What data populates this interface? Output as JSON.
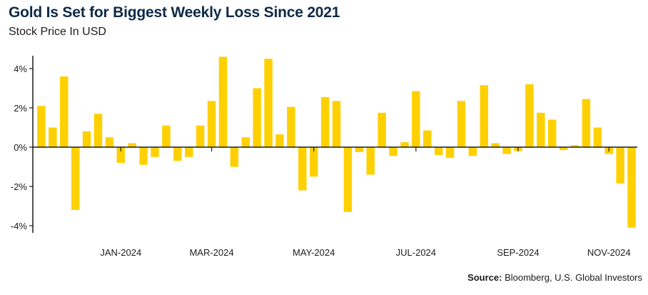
{
  "chart_data": {
    "type": "bar",
    "title": "Gold Is Set for Biggest Weekly Loss Since 2021",
    "subtitle": "Stock Price In USD",
    "xlabel": "",
    "ylabel": "",
    "ylim": [
      -4.5,
      4.8
    ],
    "yticks": [
      4,
      2,
      0,
      -2,
      -4
    ],
    "ytick_labels": [
      "4%",
      "2%",
      "0%",
      "-2%",
      "-4%"
    ],
    "xtick_labels": [
      "JAN-2024",
      "MAR-2024",
      "MAY-2024",
      "JUL-2024",
      "SEP-2024",
      "NOV-2024"
    ],
    "xtick_week_index": [
      7,
      15,
      24,
      33,
      42,
      50
    ],
    "values": [
      2.1,
      1.0,
      3.6,
      -3.2,
      0.8,
      1.7,
      0.5,
      -0.8,
      0.2,
      -0.9,
      -0.5,
      1.1,
      -0.7,
      -0.5,
      1.1,
      2.35,
      4.6,
      -1.0,
      0.5,
      3.0,
      4.5,
      0.65,
      2.05,
      -2.2,
      -1.5,
      2.55,
      2.35,
      -3.3,
      -0.25,
      -1.4,
      1.75,
      -0.45,
      0.25,
      2.85,
      0.85,
      -0.4,
      -0.55,
      2.35,
      -0.45,
      3.15,
      0.2,
      -0.35,
      -0.2,
      3.2,
      1.75,
      1.4,
      -0.15,
      0.1,
      2.45,
      1.0,
      -0.35,
      -1.85,
      -4.1
    ],
    "colors": {
      "bar": "#ffd000",
      "axis": "#1b1b1b"
    },
    "grid": false,
    "legend": "none"
  },
  "source": {
    "label": "Source:",
    "text": " Bloomberg, U.S. Global Investors"
  }
}
